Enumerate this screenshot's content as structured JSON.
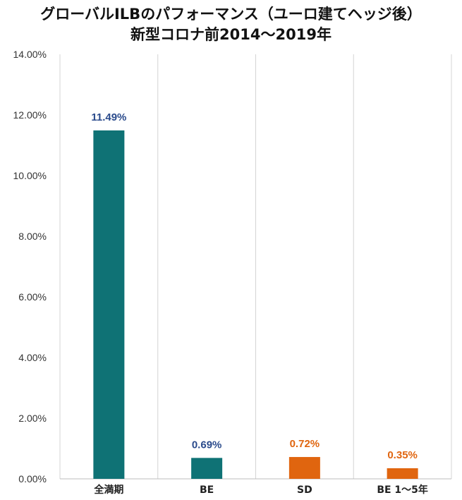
{
  "chart_data": {
    "type": "bar",
    "title_line1": "グローバルILBのパフォーマンス（ユーロ建てヘッジ後）",
    "title_line2": "新型コロナ前2014～2019年",
    "categories": [
      "全満期",
      "BE",
      "SD",
      "BE 1～5年"
    ],
    "values": [
      11.49,
      0.69,
      0.72,
      0.35
    ],
    "value_labels": [
      "11.49%",
      "0.69%",
      "0.72%",
      "0.35%"
    ],
    "bar_colors": [
      "#0f7275",
      "#0f7275",
      "#e0650f",
      "#e0650f"
    ],
    "label_colors": [
      "#2b4b8c",
      "#2b4b8c",
      "#e0650f",
      "#e0650f"
    ],
    "ylim": [
      0,
      14
    ],
    "yticks": [
      0,
      2,
      4,
      6,
      8,
      10,
      12,
      14
    ],
    "ytick_labels": [
      "0.00%",
      "2.00%",
      "4.00%",
      "6.00%",
      "8.00%",
      "10.00%",
      "12.00%",
      "14.00%"
    ],
    "xlabel": "",
    "ylabel": "",
    "grid": "vertical category separators"
  }
}
